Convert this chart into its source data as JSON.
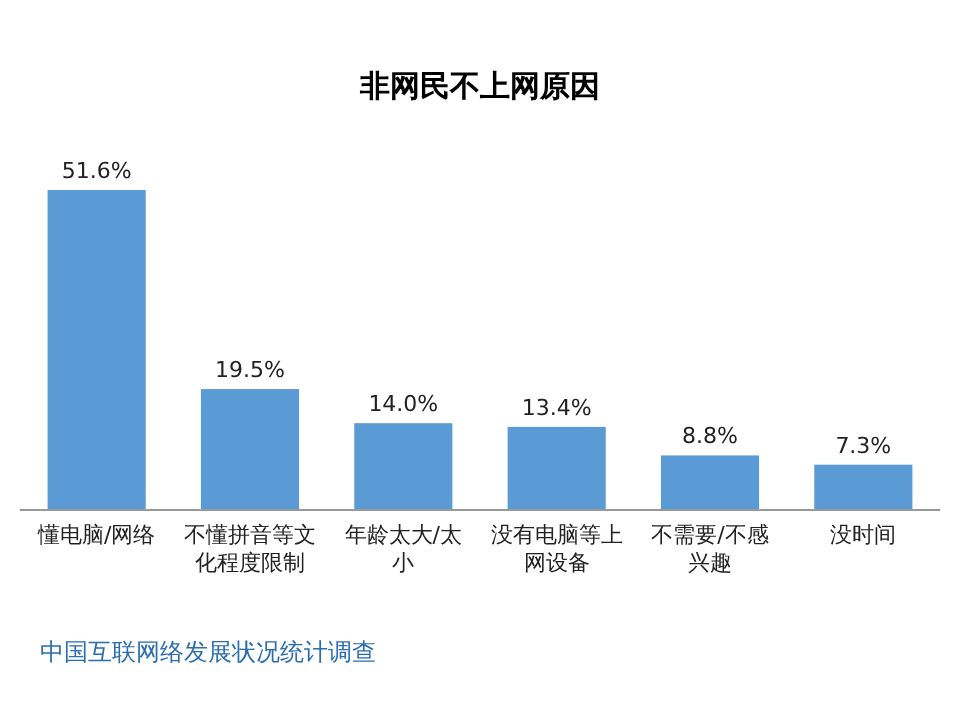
{
  "chart_data": {
    "type": "bar",
    "title": "非网民不上网原因",
    "categories": [
      "懂电脑/网络",
      "不懂拼音等文化程度限制",
      "年龄太大/太小",
      "没有电脑等上网设备",
      "不需要/不感兴趣",
      "没时间"
    ],
    "values": [
      51.6,
      19.5,
      14.0,
      13.4,
      8.8,
      7.3
    ],
    "value_labels": [
      "51.6%",
      "19.5%",
      "14.0%",
      "13.4%",
      "8.8%",
      "7.3%"
    ],
    "color": "#5b9bd5",
    "data_labels": true,
    "annotations": [
      "中国互联网络发展状况统计调查"
    ]
  }
}
